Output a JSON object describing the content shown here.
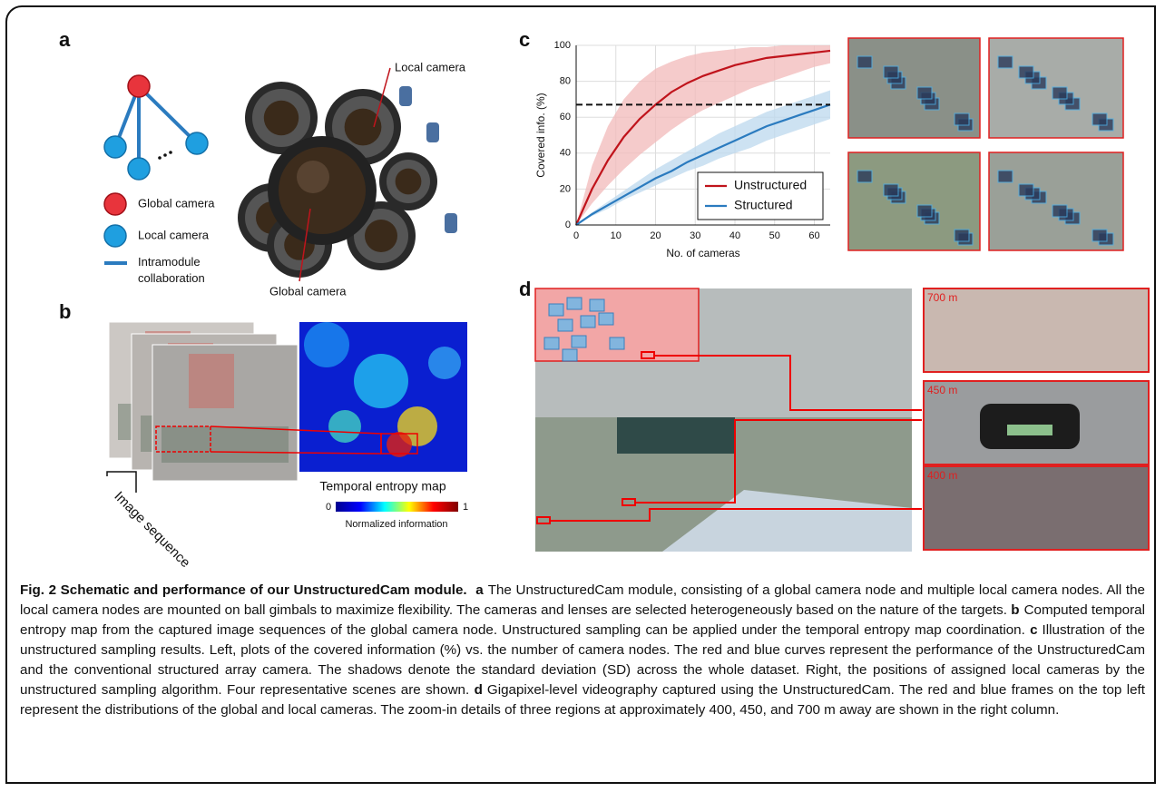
{
  "panel_a": {
    "label": "a",
    "render_labels": [
      "Local camera",
      "Global camera"
    ],
    "legend": [
      "Global camera",
      "Local camera",
      "Intramodule collaboration"
    ]
  },
  "panel_b": {
    "label": "b",
    "sequence_label": "Image sequence",
    "map_title": "Temporal entropy map",
    "colorbar": {
      "ticks": [
        0,
        1
      ],
      "label": "Normalized information"
    }
  },
  "panel_c": {
    "label": "c",
    "chart_data": {
      "type": "line",
      "x_label": "No. of cameras",
      "y_label": "Covered info. (%)",
      "x": [
        0,
        4,
        8,
        12,
        16,
        20,
        24,
        28,
        32,
        36,
        40,
        44,
        48,
        52,
        56,
        60,
        64
      ],
      "series": [
        {
          "name": "Unstructured",
          "color": "#c0141c",
          "band_color": "#f2b9b9",
          "values": [
            0,
            20,
            36,
            49,
            59,
            67,
            74,
            79,
            83,
            86,
            89,
            91,
            93,
            94,
            95,
            96,
            97
          ],
          "lower": [
            0,
            12,
            22,
            31,
            39,
            46,
            53,
            59,
            64,
            68,
            72,
            76,
            79,
            82,
            85,
            88,
            90
          ],
          "upper": [
            0,
            33,
            55,
            70,
            80,
            87,
            91,
            94,
            96,
            97,
            98,
            99,
            99,
            100,
            100,
            100,
            100
          ]
        },
        {
          "name": "Structured",
          "color": "#2b7bbf",
          "band_color": "#bcd8ee",
          "values": [
            0,
            6,
            11,
            16,
            21,
            26,
            30,
            35,
            39,
            43,
            47,
            51,
            55,
            58,
            61,
            64,
            67
          ],
          "lower": [
            0,
            5,
            9,
            14,
            18,
            22,
            26,
            30,
            33,
            37,
            40,
            43,
            47,
            50,
            53,
            56,
            59
          ],
          "upper": [
            0,
            7,
            13,
            19,
            25,
            31,
            36,
            41,
            46,
            51,
            55,
            59,
            63,
            66,
            69,
            72,
            75
          ]
        }
      ],
      "reference_line": 67,
      "xlim": [
        0,
        64
      ],
      "xticks": [
        0,
        10,
        20,
        30,
        40,
        50,
        60
      ],
      "ylim": [
        0,
        100
      ],
      "yticks": [
        0,
        20,
        40,
        60,
        80,
        100
      ],
      "grid": true,
      "legend": "lower right"
    }
  },
  "panel_d": {
    "label": "d",
    "zoom_labels": [
      "700 m",
      "450 m",
      "400 m"
    ]
  },
  "caption": {
    "title": "Fig. 2 Schematic and performance of our UnstructuredCam module.",
    "parts": [
      {
        "label": "a",
        "text": "The UnstructuredCam module, consisting of a global camera node and multiple local camera nodes. All the local camera nodes are mounted on ball gimbals to maximize flexibility. The cameras and lenses are selected heterogeneously based on the nature of the targets."
      },
      {
        "label": "b",
        "text": "Computed temporal entropy map from the captured image sequences of the global camera node. Unstructured sampling can be applied under the temporal entropy map coordination."
      },
      {
        "label": "c",
        "text": "Illustration of the unstructured sampling results. Left, plots of the covered information (%) vs. the number of camera nodes. The red and blue curves represent the performance of the UnstructuredCam and the conventional structured array camera. The shadows denote the standard deviation (SD) across the whole dataset. Right, the positions of assigned local cameras by the unstructured sampling algorithm. Four representative scenes are shown."
      },
      {
        "label": "d",
        "text": "Gigapixel-level videography captured using the UnstructuredCam. The red and blue frames on the top left represent the distributions of the global and local cameras. The zoom-in details of three regions at approximately 400, 450, and 700 m away are shown in the right column."
      }
    ]
  }
}
